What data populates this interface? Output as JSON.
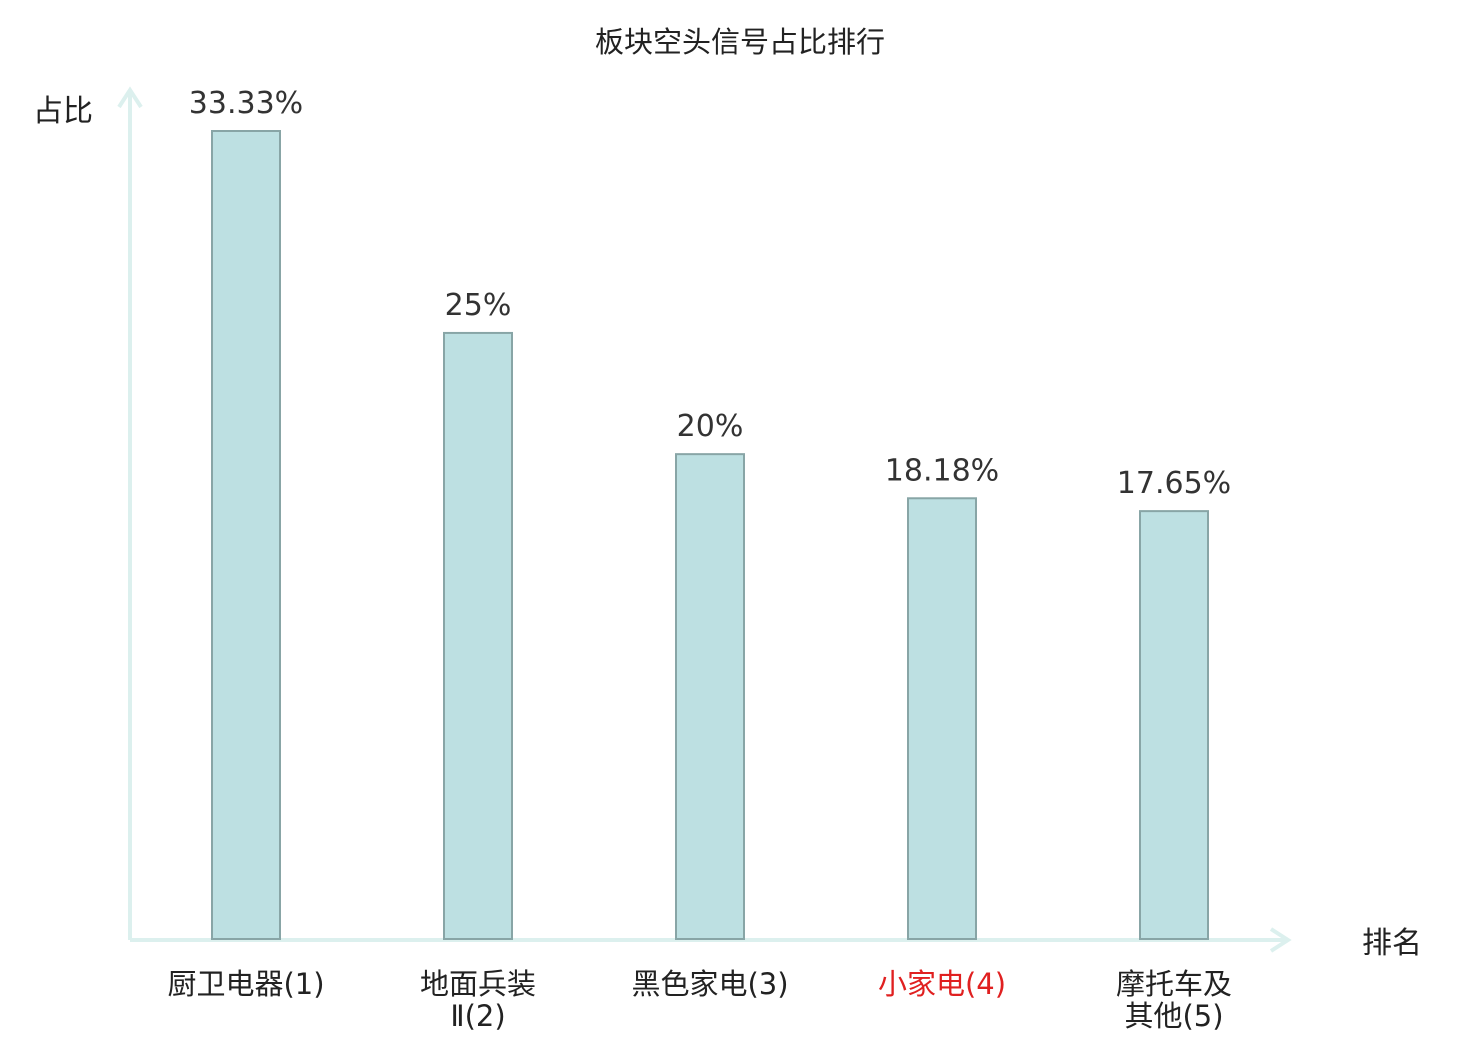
{
  "chart_data": {
    "type": "bar",
    "title": "板块空头信号占比排行",
    "xlabel": "排名",
    "ylabel": "占比",
    "categories": [
      {
        "lines": [
          "厨卫电器(1)"
        ],
        "highlight": false
      },
      {
        "lines": [
          "地面兵装",
          "Ⅱ(2)"
        ],
        "highlight": false
      },
      {
        "lines": [
          "黑色家电(3)"
        ],
        "highlight": false
      },
      {
        "lines": [
          "小家电(4)"
        ],
        "highlight": true
      },
      {
        "lines": [
          "摩托车及",
          "其他(5)"
        ],
        "highlight": false
      }
    ],
    "values": [
      33.33,
      25,
      20,
      18.18,
      17.65
    ],
    "value_labels": [
      "33.33%",
      "25%",
      "20%",
      "18.18%",
      "17.65%"
    ],
    "ylim": [
      0,
      33.33
    ],
    "grid": false,
    "colors": {
      "bar_fill": "#bde0e2",
      "bar_stroke": "#88a5a6",
      "axis": "#dcf0ee",
      "highlight_label": "#e02020"
    }
  }
}
